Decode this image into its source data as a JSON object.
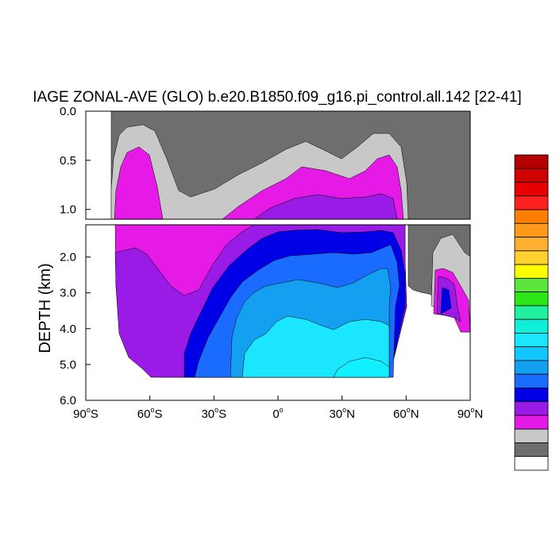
{
  "chart_data": {
    "type": "filled-contour",
    "title": "IAGE ZONAL-AVE (GLO) b.e20.B1850.f09_g16.pi_control.all.142 [22-41]",
    "ylabel": "DEPTH (km)",
    "xlabel": "",
    "xlim": [
      -90,
      90
    ],
    "x_ticks": [
      {
        "value": -90,
        "deg": "90",
        "hemi": "S"
      },
      {
        "value": -60,
        "deg": "60",
        "hemi": "S"
      },
      {
        "value": -30,
        "deg": "30",
        "hemi": "S"
      },
      {
        "value": 0,
        "deg": "0",
        "hemi": ""
      },
      {
        "value": 30,
        "deg": "30",
        "hemi": "N"
      },
      {
        "value": 60,
        "deg": "60",
        "hemi": "N"
      },
      {
        "value": 90,
        "deg": "90",
        "hemi": "N"
      }
    ],
    "upper_panel": {
      "ylim": [
        0.0,
        1.1
      ],
      "y_ticks": [
        "0.0",
        "0.5",
        "1.0"
      ],
      "y_values": [
        0.0,
        0.5,
        1.0
      ]
    },
    "lower_panel": {
      "ylim": [
        1.1,
        6.0
      ],
      "y_ticks": [
        "2.0",
        "3.0",
        "4.0",
        "5.0",
        "6.0"
      ],
      "y_values": [
        2.0,
        3.0,
        4.0,
        5.0,
        6.0
      ]
    },
    "colorbar": {
      "colors": [
        "#b40000",
        "#d00000",
        "#e60000",
        "#ff2020",
        "#ff7f00",
        "#ff9a1a",
        "#ffb02e",
        "#ffd12e",
        "#ffff00",
        "#5ae63c",
        "#2ce61a",
        "#20f0a0",
        "#10f0d8",
        "#1ae6ff",
        "#10c8ff",
        "#14a0f0",
        "#1a6cff",
        "#0000e6",
        "#9a1ae6",
        "#e61ae6",
        "#c8c8c8",
        "#6e6e6e",
        "#ffffff"
      ]
    },
    "fills": {
      "dark_gray": "#6e6e6e",
      "light_gray": "#c8c8c8",
      "magenta": "#e61ae6",
      "purple": "#9a1ae6",
      "blue": "#0000e6",
      "mid_blue": "#1a6cff",
      "light_blue": "#14a0f0",
      "cyan": "#1ae6ff",
      "bright_cyan": "#10f0ff"
    }
  }
}
